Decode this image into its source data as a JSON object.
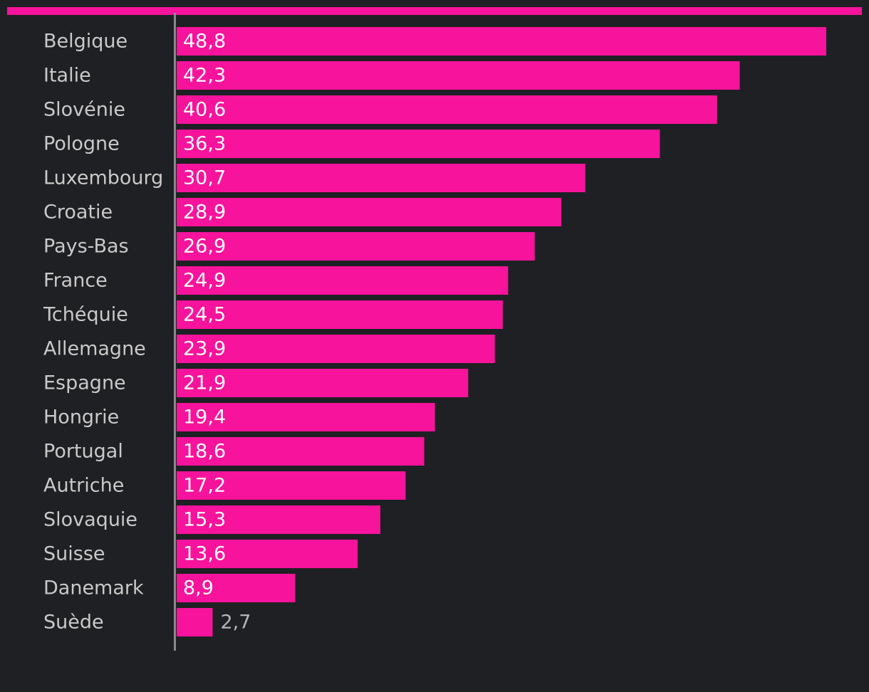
{
  "chart_data": {
    "type": "bar",
    "orientation": "horizontal",
    "categories": [
      "Belgique",
      "Italie",
      "Slovénie",
      "Pologne",
      "Luxembourg",
      "Croatie",
      "Pays-Bas",
      "France",
      "Tchéquie",
      "Allemagne",
      "Espagne",
      "Hongrie",
      "Portugal",
      "Autriche",
      "Slovaquie",
      "Suisse",
      "Danemark",
      "Suède"
    ],
    "values": [
      48.8,
      42.3,
      40.6,
      36.3,
      30.7,
      28.9,
      26.9,
      24.9,
      24.5,
      23.9,
      21.9,
      19.4,
      18.6,
      17.2,
      15.3,
      13.6,
      8.9,
      2.7
    ],
    "value_labels": [
      "48,8",
      "42,3",
      "40,6",
      "36,3",
      "30,7",
      "28,9",
      "26,9",
      "24,9",
      "24,5",
      "23,9",
      "21,9",
      "19,4",
      "18,6",
      "17,2",
      "15,3",
      "13,6",
      "8,9",
      "2,7"
    ],
    "title": "",
    "xlabel": "",
    "ylabel": "",
    "xlim": [
      0,
      48.8
    ],
    "grid": false,
    "legend": "none"
  },
  "colors": {
    "background": "#1f2023",
    "bar": "#f7139b",
    "accent_line": "#f7139b",
    "axis": "#8a8a8a",
    "label": "#c9c9c9",
    "value_inside": "#ffffff",
    "value_outside": "#b4b4b4"
  }
}
